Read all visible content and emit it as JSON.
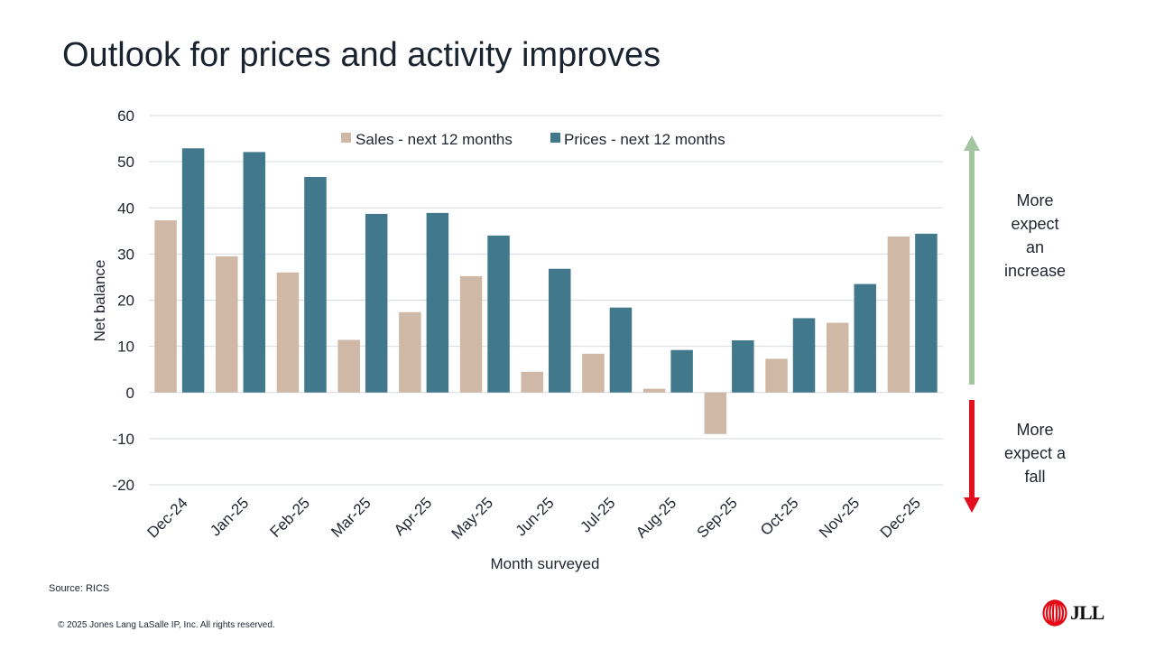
{
  "title": "Outlook for prices and activity improves",
  "source": "Source: RICS",
  "copyright": "© 2025 Jones Lang LaSalle IP, Inc. All rights reserved.",
  "logo_text": "JLL",
  "side_labels": {
    "increase": [
      "More",
      "expect",
      "an",
      "increase"
    ],
    "fall": [
      "More",
      "expect a",
      "fall"
    ]
  },
  "colors": {
    "sales": "#d0b8a7",
    "prices": "#42788c",
    "grid": "#d5dce3",
    "arrow_up": "#a3c6a0",
    "arrow_down": "#e0101f",
    "logo_red": "#e30613"
  },
  "chart_data": {
    "type": "bar",
    "title": "",
    "xlabel": "Month surveyed",
    "ylabel": "Net balance",
    "ylim": [
      -20,
      60
    ],
    "yticks": [
      60,
      50,
      40,
      30,
      20,
      10,
      0,
      -10,
      -20
    ],
    "grid": true,
    "legend_position": "top-center",
    "categories": [
      "Dec-24",
      "Jan-25",
      "Feb-25",
      "Mar-25",
      "Apr-25",
      "May-25",
      "Jun-25",
      "Jul-25",
      "Aug-25",
      "Sep-25",
      "Oct-25",
      "Nov-25",
      "Dec-25"
    ],
    "series": [
      {
        "name": "Sales - next 12 months",
        "color_key": "sales",
        "values": [
          37.3,
          29.5,
          26.0,
          11.4,
          17.4,
          25.2,
          4.5,
          8.4,
          0.8,
          -9.0,
          7.3,
          15.1,
          33.8
        ]
      },
      {
        "name": "Prices - next 12 months",
        "color_key": "prices",
        "values": [
          52.9,
          52.1,
          46.7,
          38.7,
          38.9,
          34.0,
          26.8,
          18.4,
          9.2,
          11.3,
          16.1,
          23.5,
          34.4
        ]
      }
    ]
  }
}
